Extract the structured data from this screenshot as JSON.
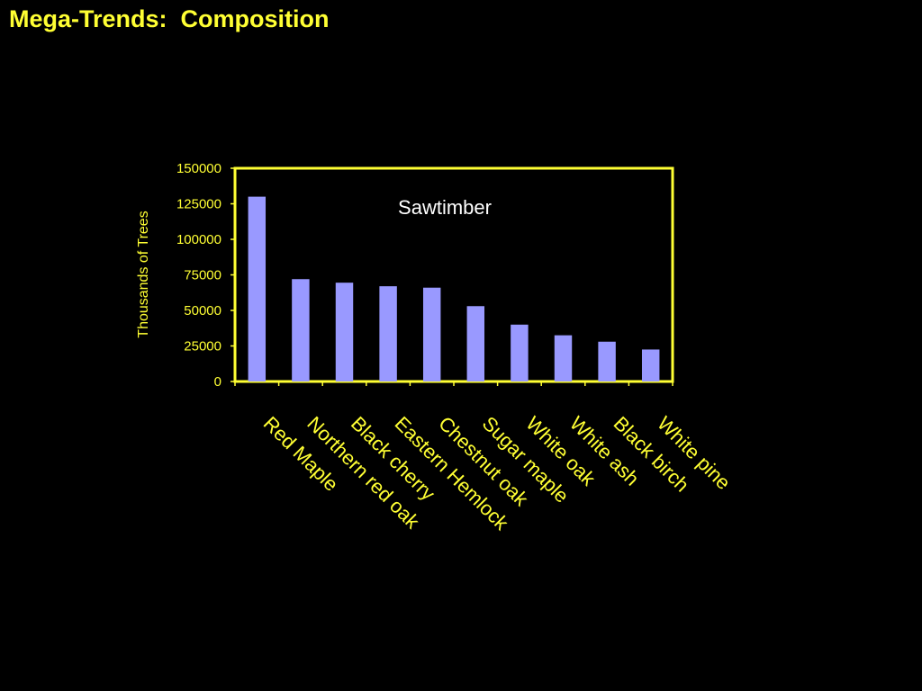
{
  "slide": {
    "title": "Mega-Trends:  Composition"
  },
  "colors": {
    "background": "#000000",
    "text": "#ffff33",
    "bar": "#9999ff",
    "plot_area": "#000000",
    "plot_border": "#ffff33",
    "annotation": "#ffffff"
  },
  "chart_data": {
    "type": "bar",
    "annotation": "Sawtimber",
    "xlabel": "",
    "ylabel": "Thousands of Trees",
    "ylim": [
      0,
      150000
    ],
    "yticks": [
      0,
      25000,
      50000,
      75000,
      100000,
      125000,
      150000
    ],
    "tick_labels": [
      "0",
      "25000",
      "50000",
      "75000",
      "100000",
      "125000",
      "150000"
    ],
    "grid": false,
    "legend": "none",
    "categories": [
      "Red Maple",
      "Northern red oak",
      "Black cherry",
      "Eastern Hemlock",
      "Chestnut oak",
      "Sugar maple",
      "White oak",
      "White ash",
      "Black birch",
      "White pine"
    ],
    "values": [
      130000,
      72000,
      69500,
      67000,
      66000,
      53000,
      40000,
      32500,
      28000,
      22500
    ]
  }
}
